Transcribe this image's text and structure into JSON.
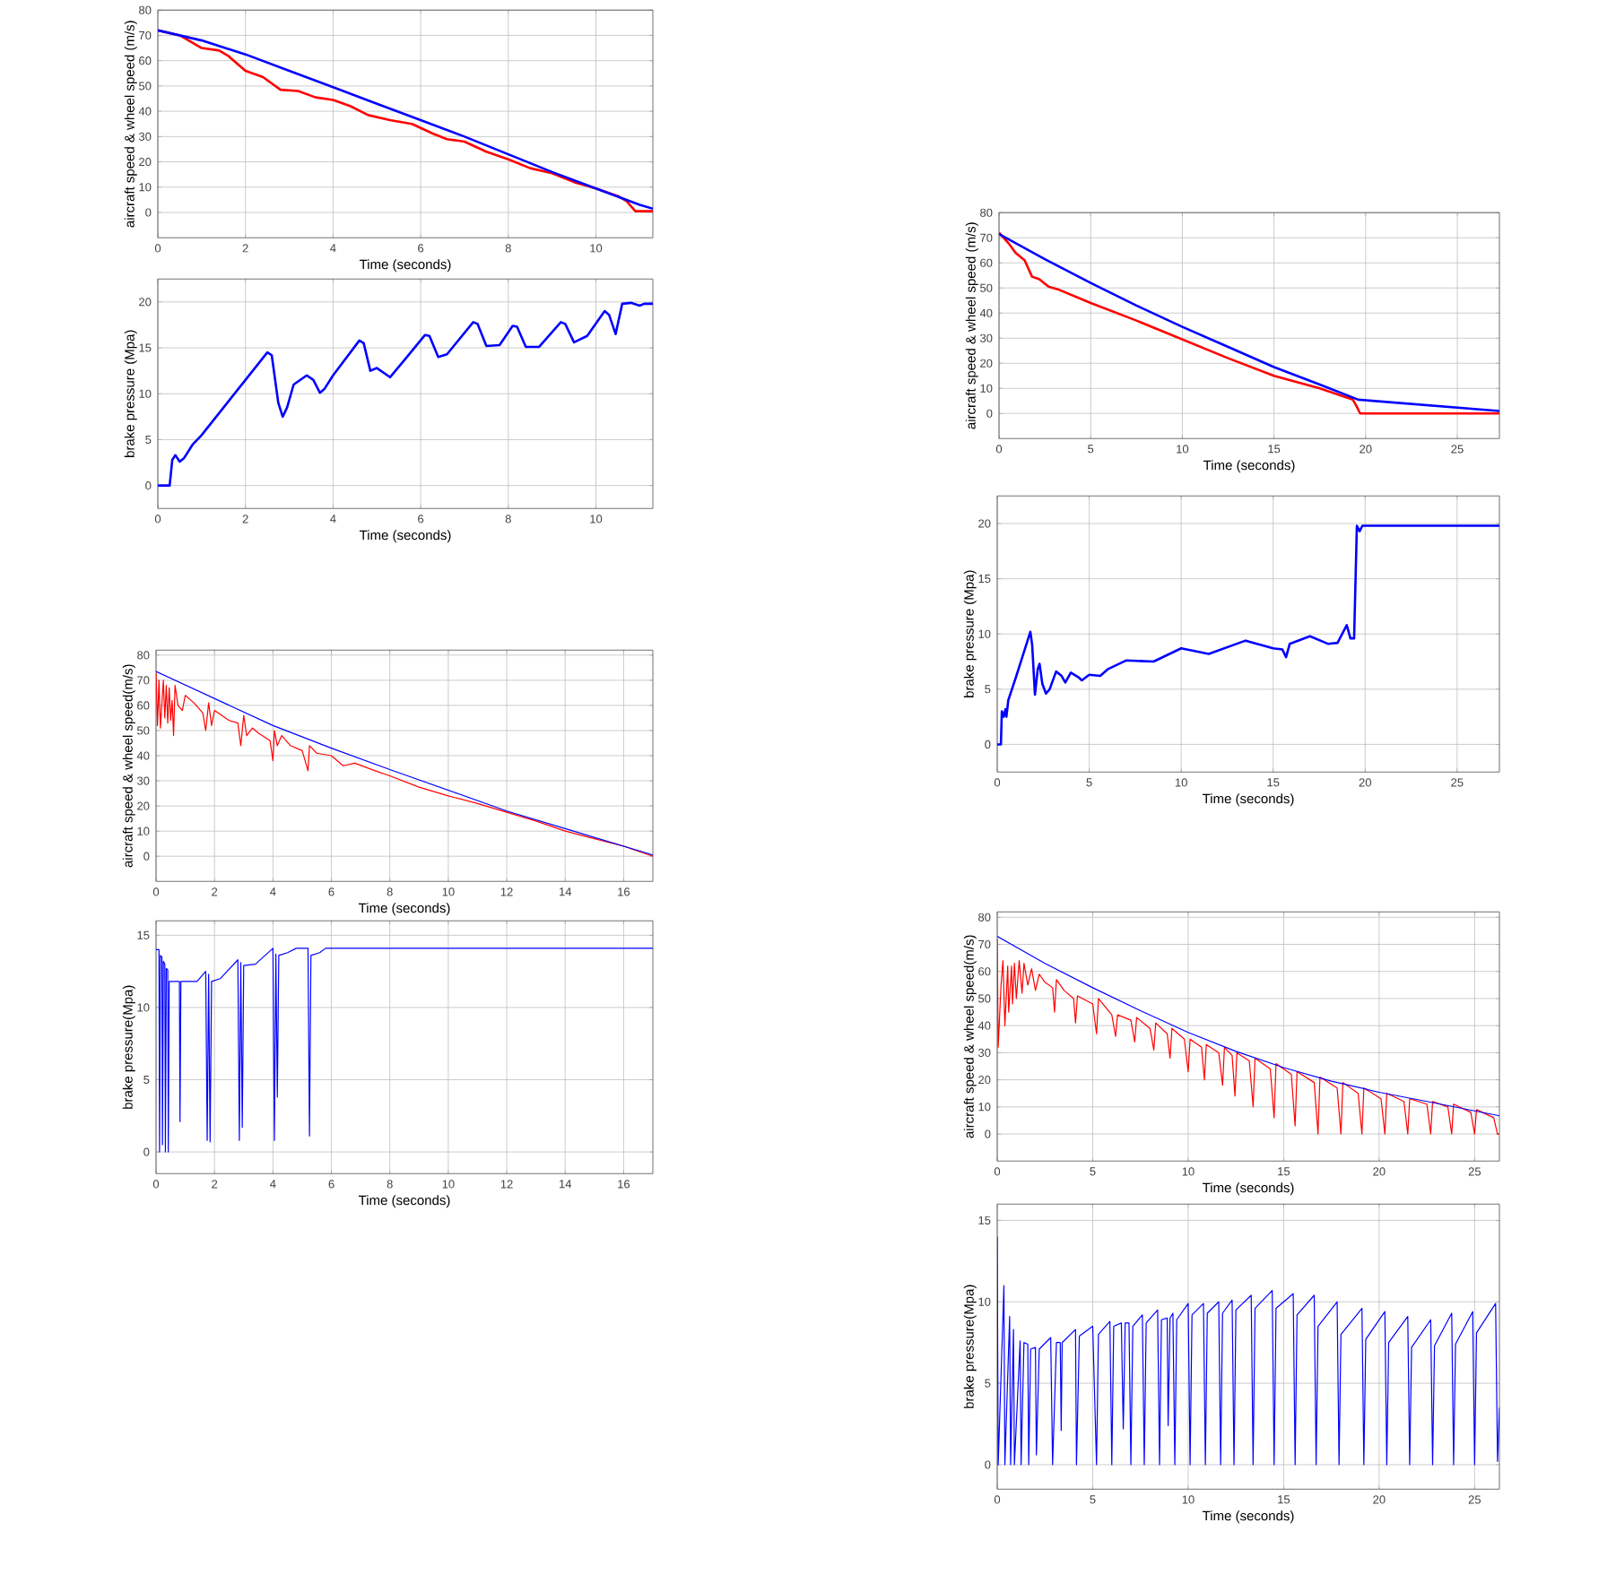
{
  "chart_data": [
    {
      "type": "line",
      "xlabel": "Time (seconds)",
      "ylabel": "aircraft speed & wheel speed (m/s)",
      "xlim": [
        0,
        11.3
      ],
      "ylim": [
        -10,
        80
      ],
      "xticks": [
        0,
        2,
        4,
        6,
        8,
        10
      ],
      "yticks": [
        0,
        10,
        20,
        30,
        40,
        50,
        60,
        70,
        80
      ],
      "grid": true,
      "series": [
        {
          "color": "#ff0000",
          "x": [
            0,
            0.5,
            1,
            1.4,
            1.6,
            2,
            2.4,
            2.8,
            3.2,
            3.6,
            4,
            4.4,
            4.8,
            5.3,
            5.8,
            6.3,
            6.6,
            7,
            7.5,
            8,
            8.5,
            9,
            9.5,
            10,
            10.5,
            10.7,
            10.9,
            11.3
          ],
          "values": [
            72,
            70,
            65,
            64,
            62,
            56,
            53.5,
            48.5,
            48,
            45.5,
            44.5,
            42,
            38.5,
            36.5,
            35,
            31,
            29,
            28,
            24,
            21,
            17.5,
            15.5,
            12,
            9.5,
            6.5,
            4.5,
            0.5,
            0.5
          ]
        },
        {
          "color": "#0000ff",
          "x": [
            0,
            1,
            2,
            3,
            4,
            5,
            6,
            7,
            8,
            9,
            10,
            11,
            11.3
          ],
          "values": [
            72,
            68,
            62.5,
            56,
            49.5,
            43,
            36.5,
            30,
            23,
            16,
            9.5,
            3,
            1.5
          ]
        }
      ]
    },
    {
      "type": "line",
      "xlabel": "Time (seconds)",
      "ylabel": "brake pressure (Mpa)",
      "xlim": [
        0,
        11.3
      ],
      "ylim": [
        -2.5,
        22.5
      ],
      "xticks": [
        0,
        2,
        4,
        6,
        8,
        10
      ],
      "yticks": [
        0,
        5,
        10,
        15,
        20
      ],
      "grid": true,
      "series": [
        {
          "color": "#0000ff",
          "x": [
            0,
            0.27,
            0.33,
            0.4,
            0.5,
            0.6,
            0.8,
            1,
            1.5,
            2,
            2.5,
            2.6,
            2.75,
            2.85,
            2.95,
            3.1,
            3.4,
            3.55,
            3.7,
            3.8,
            4,
            4.6,
            4.7,
            4.85,
            5,
            5.3,
            5.6,
            6.1,
            6.2,
            6.4,
            6.6,
            7.2,
            7.3,
            7.5,
            7.8,
            8.1,
            8.2,
            8.4,
            8.7,
            9.2,
            9.3,
            9.5,
            9.8,
            10.2,
            10.3,
            10.45,
            10.6,
            10.8,
            11,
            11.1,
            11.3
          ],
          "values": [
            0,
            0,
            2.8,
            3.3,
            2.6,
            3,
            4.5,
            5.5,
            8.5,
            11.5,
            14.5,
            14.2,
            9,
            7.5,
            8.5,
            11,
            12,
            11.5,
            10.1,
            10.5,
            12,
            15.8,
            15.5,
            12.5,
            12.8,
            11.8,
            13.5,
            16.4,
            16.3,
            14,
            14.3,
            17.8,
            17.6,
            15.2,
            15.3,
            17.4,
            17.3,
            15.1,
            15.1,
            17.8,
            17.6,
            15.6,
            16.3,
            19,
            18.6,
            16.5,
            19.8,
            19.9,
            19.6,
            19.8,
            19.8
          ]
        }
      ]
    },
    {
      "type": "line",
      "xlabel": "Time (seconds)",
      "ylabel": "aircraft speed & wheel speed(m/s)",
      "xlim": [
        0,
        17
      ],
      "ylim": [
        -10,
        82
      ],
      "xticks": [
        0,
        2,
        4,
        6,
        8,
        10,
        12,
        14,
        16
      ],
      "yticks": [
        0,
        10,
        20,
        30,
        40,
        50,
        60,
        70,
        80
      ],
      "grid": true,
      "series": [
        {
          "color": "#ff0000",
          "x": [
            0,
            0.05,
            0.1,
            0.15,
            0.25,
            0.3,
            0.35,
            0.4,
            0.45,
            0.5,
            0.55,
            0.6,
            0.65,
            0.75,
            0.9,
            1,
            1.3,
            1.6,
            1.7,
            1.8,
            1.9,
            2,
            2.5,
            2.8,
            2.9,
            3,
            3.1,
            3.3,
            3.5,
            3.9,
            4,
            4.05,
            4.15,
            4.3,
            4.6,
            5,
            5.2,
            5.25,
            5.5,
            6,
            6.4,
            6.8,
            7.5,
            8,
            9,
            10,
            11,
            12,
            13,
            14,
            15,
            16,
            17
          ],
          "values": [
            73,
            52,
            70,
            51,
            70,
            55,
            68,
            53,
            67,
            54,
            62,
            48,
            68,
            60,
            58,
            64,
            61,
            57,
            50,
            61,
            52,
            58,
            54,
            53,
            44,
            56,
            48,
            51,
            49,
            46,
            38,
            50,
            44,
            48,
            44,
            42,
            34,
            44,
            41,
            40,
            36,
            37,
            34,
            32,
            27.5,
            24,
            21,
            17.5,
            14,
            10,
            7,
            4,
            0
          ]
        },
        {
          "color": "#0000ff",
          "x": [
            0,
            4,
            6,
            8,
            12,
            14,
            17
          ],
          "values": [
            73.5,
            52,
            43,
            34.5,
            18,
            11,
            0.5
          ]
        }
      ]
    },
    {
      "type": "line",
      "xlabel": "Time (seconds)",
      "ylabel": "brake pressure(Mpa)",
      "xlim": [
        0,
        17
      ],
      "ylim": [
        -1.5,
        16
      ],
      "xticks": [
        0,
        2,
        4,
        6,
        8,
        10,
        12,
        14,
        16
      ],
      "yticks": [
        0,
        5,
        10,
        15
      ],
      "grid": true,
      "series": [
        {
          "color": "#0000ff",
          "x": [
            0,
            0.1,
            0.12,
            0.15,
            0.2,
            0.22,
            0.25,
            0.3,
            0.32,
            0.35,
            0.4,
            0.42,
            0.45,
            0.8,
            0.82,
            0.85,
            1.4,
            1.7,
            1.75,
            1.8,
            1.85,
            1.9,
            2.2,
            2.8,
            2.85,
            2.9,
            2.95,
            3,
            3.4,
            4,
            4.05,
            4.1,
            4.15,
            4.2,
            4.5,
            4.8,
            5.2,
            5.25,
            5.3,
            5.6,
            5.8,
            17
          ],
          "values": [
            14,
            14,
            0,
            13.6,
            13.5,
            0.5,
            13.2,
            13,
            0,
            12.7,
            12.6,
            0,
            11.8,
            11.8,
            2.1,
            11.8,
            11.8,
            12.5,
            0.8,
            12.3,
            0.7,
            11.8,
            12,
            13.3,
            0.8,
            13.1,
            1.7,
            12.9,
            13,
            14.1,
            0.8,
            13.7,
            3.8,
            13.6,
            13.8,
            14.1,
            14.1,
            1.1,
            13.6,
            13.8,
            14.1,
            14.1
          ]
        }
      ]
    },
    {
      "type": "line",
      "xlabel": "Time (seconds)",
      "ylabel": "aircraft speed & wheel speed (m/s)",
      "xlim": [
        0,
        27.3
      ],
      "ylim": [
        -10,
        80
      ],
      "xticks": [
        0,
        5,
        10,
        15,
        20,
        25
      ],
      "yticks": [
        0,
        10,
        20,
        30,
        40,
        50,
        60,
        70,
        80
      ],
      "grid": true,
      "series": [
        {
          "color": "#ff0000",
          "x": [
            0,
            0.5,
            0.9,
            1.4,
            1.8,
            2.2,
            2.7,
            3.2,
            5,
            7.5,
            10,
            12.5,
            15,
            17.5,
            19.3,
            19.5,
            19.7,
            27.3
          ],
          "values": [
            72,
            68,
            64,
            61,
            54.5,
            53.5,
            50.5,
            49.5,
            44,
            37,
            29.5,
            22,
            15,
            10,
            5.5,
            3,
            0,
            0
          ]
        },
        {
          "color": "#0000ff",
          "x": [
            0,
            2.5,
            5,
            7.5,
            10,
            12.5,
            15,
            17.5,
            19.6,
            27.3
          ],
          "values": [
            71.5,
            61.5,
            52,
            43,
            34.5,
            26.5,
            18.5,
            11.5,
            5.5,
            1
          ]
        }
      ]
    },
    {
      "type": "line",
      "xlabel": "Time (seconds)",
      "ylabel": "brake pressure (Mpa)",
      "xlim": [
        0,
        27.3
      ],
      "ylim": [
        -2.5,
        22.5
      ],
      "xticks": [
        0,
        5,
        10,
        15,
        20,
        25
      ],
      "yticks": [
        0,
        5,
        10,
        15,
        20
      ],
      "grid": true,
      "series": [
        {
          "color": "#0000ff",
          "x": [
            0,
            0.2,
            0.25,
            0.35,
            0.45,
            0.5,
            0.6,
            1,
            1.8,
            1.9,
            2.05,
            2.2,
            2.3,
            2.45,
            2.65,
            2.85,
            3.2,
            3.5,
            3.7,
            4,
            4.4,
            4.6,
            5,
            5.6,
            6,
            7,
            8.5,
            10,
            11.5,
            13.5,
            15,
            15.5,
            15.7,
            15.9,
            17,
            18,
            18.5,
            19,
            19.2,
            19.4,
            19.55,
            19.7,
            19.85,
            27.3
          ],
          "values": [
            0,
            0,
            3,
            2.5,
            3.2,
            2.5,
            4,
            6,
            10.2,
            9,
            4.5,
            6.8,
            7.3,
            5.5,
            4.6,
            5,
            6.6,
            6.2,
            5.6,
            6.5,
            6.1,
            5.8,
            6.3,
            6.2,
            6.8,
            7.6,
            7.5,
            8.7,
            8.2,
            9.4,
            8.7,
            8.6,
            7.9,
            9.1,
            9.8,
            9.1,
            9.2,
            10.8,
            9.6,
            9.6,
            19.8,
            19.3,
            19.8,
            19.8
          ]
        }
      ]
    },
    {
      "type": "line",
      "xlabel": "Time (seconds)",
      "ylabel": "aircraft speed & wheel speed(m/s)",
      "xlim": [
        0,
        26.3
      ],
      "ylim": [
        -10,
        82
      ],
      "xticks": [
        0,
        5,
        10,
        15,
        20,
        25
      ],
      "yticks": [
        0,
        10,
        20,
        30,
        40,
        50,
        60,
        70,
        80
      ],
      "grid": true,
      "series": [
        {
          "color": "#ff0000",
          "x": [
            0,
            0.05,
            0.2,
            0.3,
            0.4,
            0.55,
            0.6,
            0.75,
            0.8,
            0.9,
            1,
            1.15,
            1.3,
            1.4,
            1.6,
            1.8,
            2,
            2.2,
            2.5,
            2.9,
            3,
            3.1,
            3.5,
            4,
            4.1,
            4.2,
            5,
            5.2,
            5.3,
            6,
            6.2,
            6.3,
            7,
            7.2,
            7.3,
            8,
            8.2,
            8.3,
            8.9,
            9.05,
            9.15,
            9.8,
            10,
            10.1,
            10.7,
            10.85,
            10.95,
            11.6,
            11.8,
            11.9,
            12.3,
            12.45,
            12.55,
            13.2,
            13.4,
            13.5,
            14.3,
            14.5,
            14.6,
            15.4,
            15.6,
            15.7,
            16.6,
            16.8,
            16.9,
            17.8,
            18,
            18.1,
            18.9,
            19.1,
            19.2,
            20.1,
            20.3,
            20.4,
            21.3,
            21.5,
            21.6,
            22.5,
            22.7,
            22.8,
            23.6,
            23.8,
            23.9,
            24.8,
            25,
            25.1,
            26,
            26.2,
            26.3
          ],
          "values": [
            72,
            32,
            55,
            64,
            40,
            62,
            45,
            62,
            48,
            63,
            50,
            64,
            52,
            63,
            55,
            61,
            53,
            59,
            56,
            54,
            45,
            57,
            53,
            50,
            41,
            51,
            48,
            37,
            50,
            44,
            36,
            44,
            42,
            34,
            43,
            39,
            31,
            41,
            37,
            28,
            39,
            35,
            23,
            35,
            32,
            20,
            33,
            30,
            18,
            32,
            29,
            14,
            30,
            27,
            10,
            28,
            24,
            6,
            26,
            22,
            3,
            23,
            19,
            0,
            21,
            17,
            0,
            19,
            15,
            0,
            17,
            13,
            0,
            15,
            12,
            0,
            13,
            11,
            0,
            12,
            10,
            0,
            11,
            8,
            0,
            9,
            6,
            0,
            0
          ]
        },
        {
          "color": "#0000ff",
          "x": [
            0,
            2.5,
            5,
            7.5,
            10,
            12.5,
            15,
            17.5,
            20,
            22.5,
            26.3
          ],
          "values": [
            73,
            63,
            54,
            45.5,
            37.5,
            30.5,
            24.5,
            19.5,
            15.4,
            12,
            6.7
          ]
        }
      ]
    },
    {
      "type": "line",
      "xlabel": "Time (seconds)",
      "ylabel": "brake pressure(Mpa)",
      "xlim": [
        0,
        26.3
      ],
      "ylim": [
        -1.5,
        16
      ],
      "xticks": [
        0,
        5,
        10,
        15,
        20,
        25
      ],
      "yticks": [
        0,
        5,
        10,
        15
      ],
      "grid": true,
      "series": [
        {
          "color": "#0000ff",
          "x": [
            0,
            0.05,
            0.35,
            0.4,
            0.65,
            0.7,
            0.85,
            0.9,
            1.2,
            1.25,
            1.4,
            1.6,
            1.65,
            1.75,
            2,
            2.05,
            2.2,
            2.8,
            2.9,
            3.1,
            3.3,
            3.35,
            3.4,
            4.1,
            4.15,
            4.3,
            5,
            5.2,
            5.3,
            5.9,
            6,
            6.1,
            6.5,
            6.6,
            6.7,
            6.9,
            7,
            7.1,
            7.6,
            7.7,
            7.8,
            8.4,
            8.5,
            8.6,
            8.9,
            8.95,
            9.05,
            9.2,
            9.3,
            9.4,
            10,
            10.1,
            10.2,
            10.8,
            10.9,
            11,
            11.6,
            11.7,
            11.8,
            12.3,
            12.4,
            12.5,
            13.3,
            13.4,
            13.5,
            14.4,
            14.5,
            14.6,
            15.5,
            15.6,
            15.7,
            16.6,
            16.7,
            16.8,
            17.8,
            17.9,
            18,
            19.1,
            19.2,
            19.3,
            20.3,
            20.4,
            20.5,
            21.5,
            21.6,
            21.7,
            22.7,
            22.8,
            22.9,
            23.8,
            23.9,
            24,
            24.9,
            25,
            25.1,
            26.1,
            26.2,
            26.3
          ],
          "values": [
            14,
            0,
            11,
            0,
            9.1,
            0,
            8.3,
            0,
            7.6,
            0,
            7.5,
            7.4,
            0,
            7.1,
            7.2,
            0.6,
            7.1,
            7.8,
            0,
            7.5,
            7.5,
            2.1,
            7.5,
            8.3,
            0,
            7.9,
            8.5,
            0,
            8,
            8.8,
            0,
            8.5,
            8.7,
            2.2,
            8.7,
            8.7,
            0,
            8.5,
            9.2,
            0,
            8.7,
            9.5,
            0,
            8.9,
            9,
            2.4,
            9,
            9.3,
            0,
            8.9,
            9.9,
            0,
            9.2,
            9.9,
            0,
            9.3,
            10,
            0,
            9.3,
            10.1,
            0,
            9.5,
            10.4,
            0,
            9.6,
            10.7,
            0,
            9.6,
            10.5,
            0,
            9.2,
            10.4,
            0,
            8.5,
            10,
            0,
            8,
            9.6,
            0,
            7.7,
            9.4,
            0,
            7.5,
            9.1,
            0,
            7.2,
            8.9,
            0,
            7.3,
            9.3,
            0,
            7.4,
            9.4,
            0,
            8.1,
            9.9,
            0.2,
            3.5
          ]
        }
      ]
    }
  ]
}
